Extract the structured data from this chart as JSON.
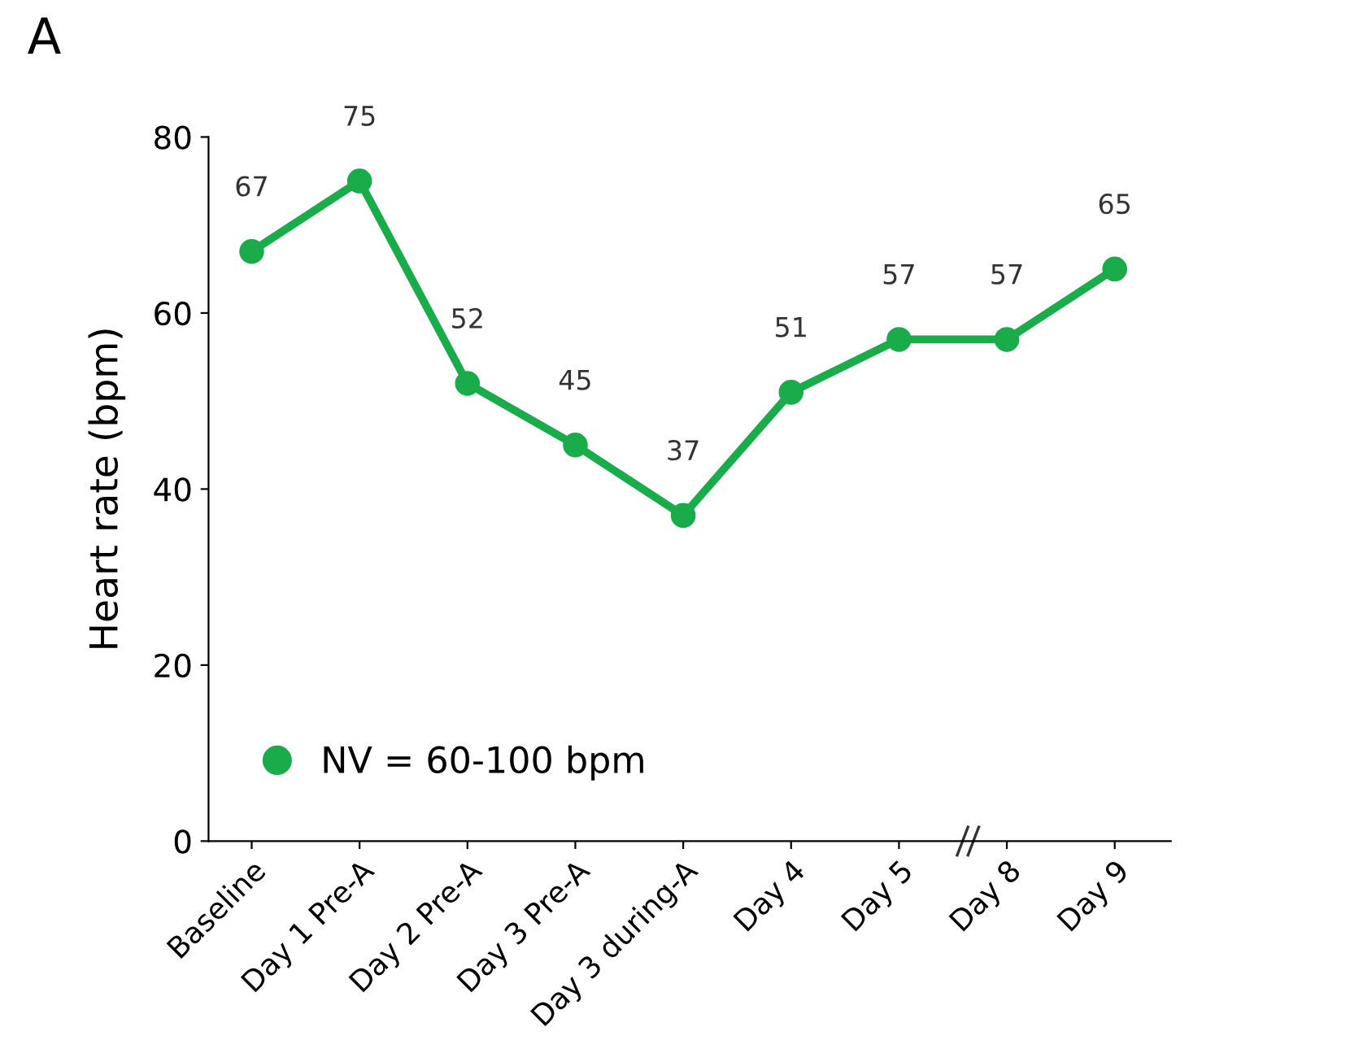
{
  "chart_data": {
    "type": "line",
    "title": "A",
    "ylabel": "Heart rate (bpm)",
    "categories": [
      "Baseline",
      "Day 1 Pre-A",
      "Day 2 Pre-A",
      "Day 3 Pre-A",
      "Day 3 during-A",
      "Day 4",
      "Day 5",
      "Day 8",
      "Day 9"
    ],
    "series": [
      {
        "name": "NV = 60-100 bpm",
        "color": "#1aab4b",
        "values": [
          67,
          75,
          52,
          45,
          37,
          51,
          57,
          57,
          65
        ]
      }
    ],
    "ylim": [
      0,
      80
    ],
    "yticks": [
      0,
      20,
      40,
      60,
      80
    ],
    "grid": false,
    "legend": "bottom left",
    "marker": "circle",
    "line_style": "solid",
    "data_labels": true
  }
}
